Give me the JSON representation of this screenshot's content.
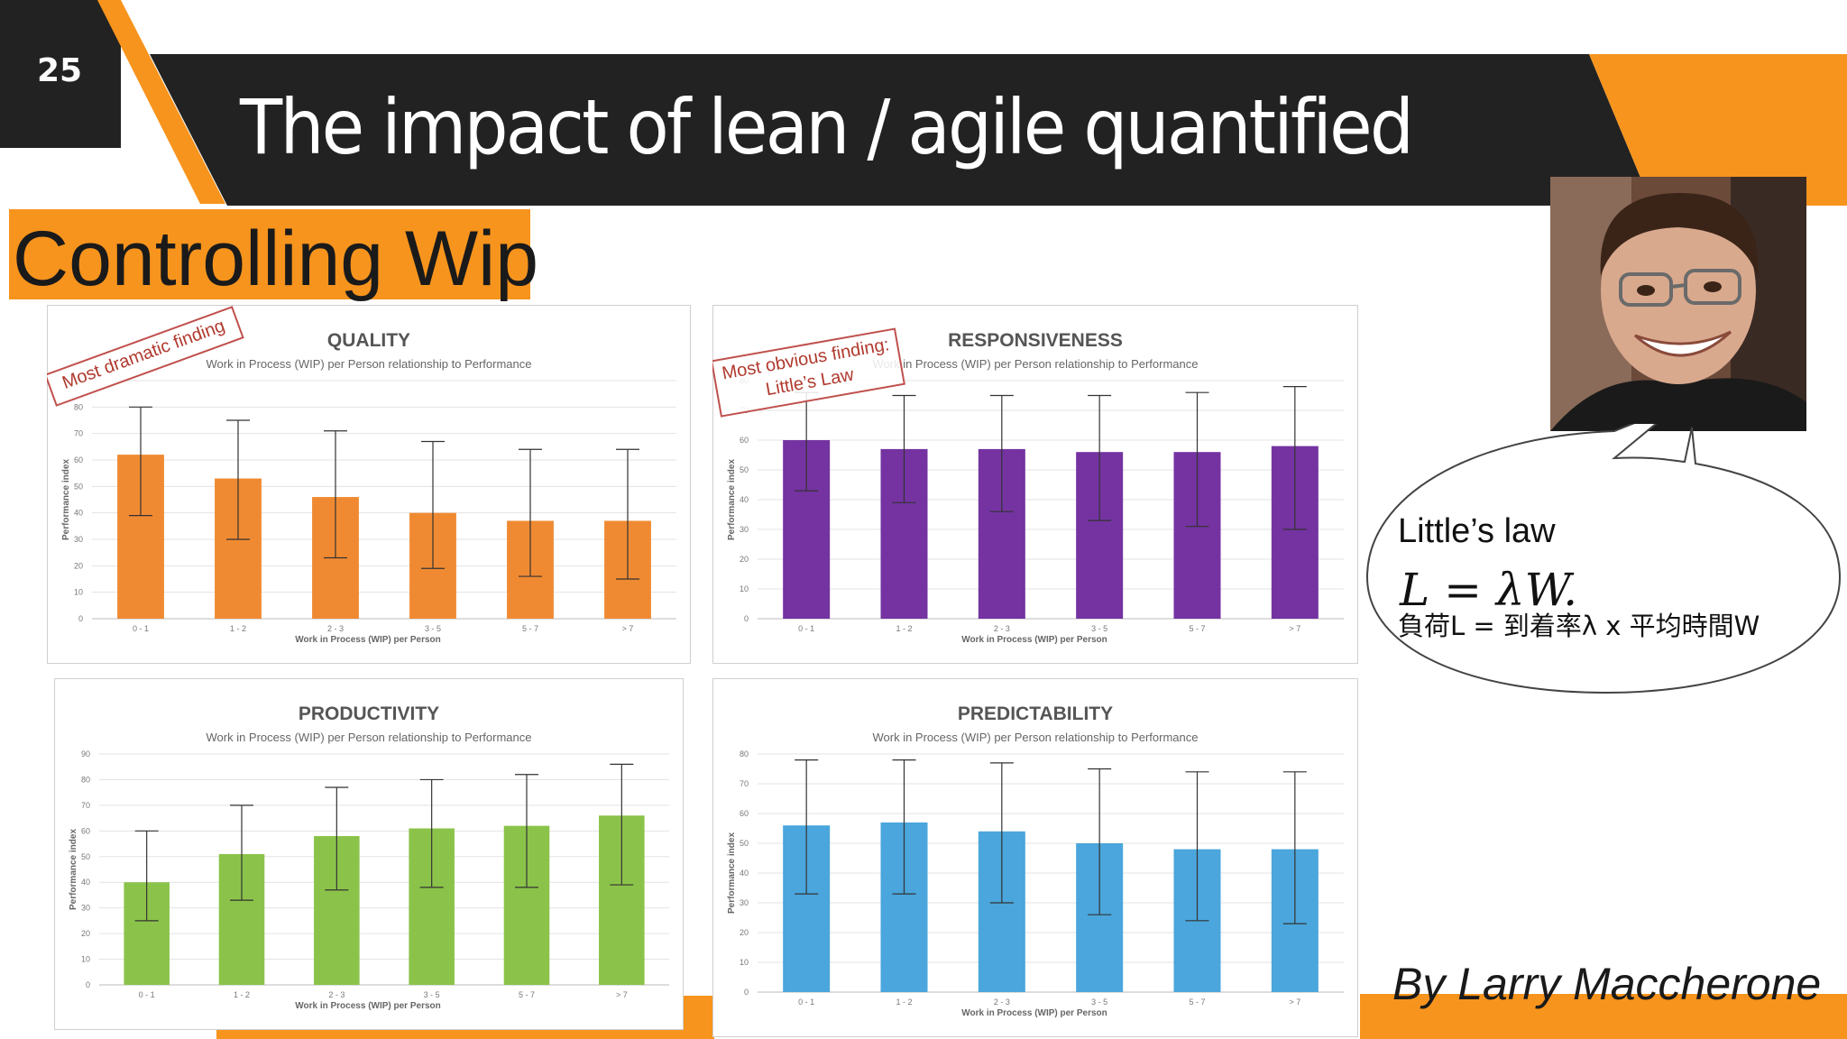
{
  "slide": {
    "number": "25",
    "title": "The impact of lean / agile quantified",
    "banner": "Controlling Wip",
    "author": "By Larry Maccherone"
  },
  "colors": {
    "dark_bar": "#222222",
    "accent_orange": "#f7941d",
    "quality": "#f08a32",
    "responsiveness": "#7433a1",
    "productivity": "#8bc34a",
    "predictability": "#4aa6dc"
  },
  "icons": {
    "photo": "presenter-portrait"
  },
  "bubble": {
    "title": "Little’s law",
    "formula": "L = λW.",
    "japanese": "負荷L = 到着率λ x 平均時間W"
  },
  "chart_data": [
    {
      "type": "bar",
      "title": "QUALITY",
      "subtitle": "Work in Process (WIP) per Person relationship to Performance",
      "xlabel": "Work in Process (WIP) per Person",
      "ylabel": "Performance index",
      "categories": [
        "0 - 1",
        "1 - 2",
        "2 - 3",
        "3 - 5",
        "5 - 7",
        "> 7"
      ],
      "values": [
        62,
        53,
        46,
        40,
        37,
        37
      ],
      "error_low": [
        39,
        30,
        23,
        19,
        16,
        15
      ],
      "error_high": [
        80,
        75,
        71,
        67,
        64,
        64
      ],
      "yticks": [
        0,
        10,
        20,
        30,
        40,
        50,
        60,
        70,
        80,
        90
      ],
      "ylim": [
        0,
        90
      ],
      "grid": true,
      "annotation": [
        "Most dramatic finding"
      ]
    },
    {
      "type": "bar",
      "title": "RESPONSIVENESS",
      "subtitle": "Work in Process (WIP) per Person relationship to Performance",
      "xlabel": "Work in Process (WIP) per Person",
      "ylabel": "Performance index",
      "categories": [
        "0 - 1",
        "1 - 2",
        "2 - 3",
        "3 - 5",
        "5 - 7",
        "> 7"
      ],
      "values": [
        60,
        57,
        57,
        56,
        56,
        58
      ],
      "error_low": [
        43,
        39,
        36,
        33,
        31,
        30
      ],
      "error_high": [
        76,
        75,
        75,
        75,
        76,
        78
      ],
      "yticks": [
        0,
        10,
        20,
        30,
        40,
        50,
        60,
        70,
        80
      ],
      "ylim": [
        0,
        80
      ],
      "grid": true,
      "annotation": [
        "Most obvious finding:",
        "Little’s Law"
      ]
    },
    {
      "type": "bar",
      "title": "PRODUCTIVITY",
      "subtitle": "Work in Process (WIP) per Person relationship to Performance",
      "xlabel": "Work in Process (WIP) per Person",
      "ylabel": "Performance index",
      "categories": [
        "0 - 1",
        "1 - 2",
        "2 - 3",
        "3 - 5",
        "5 - 7",
        "> 7"
      ],
      "values": [
        40,
        51,
        58,
        61,
        62,
        66
      ],
      "error_low": [
        25,
        33,
        37,
        38,
        38,
        39
      ],
      "error_high": [
        60,
        70,
        77,
        80,
        82,
        86
      ],
      "yticks": [
        0,
        10,
        20,
        30,
        40,
        50,
        60,
        70,
        80,
        90
      ],
      "ylim": [
        0,
        90
      ],
      "grid": true,
      "annotation": []
    },
    {
      "type": "bar",
      "title": "PREDICTABILITY",
      "subtitle": "Work in Process (WIP) per Person relationship to Performance",
      "xlabel": "Work in Process (WIP) per Person",
      "ylabel": "Performance index",
      "categories": [
        "0 - 1",
        "1 - 2",
        "2 - 3",
        "3 - 5",
        "5 - 7",
        "> 7"
      ],
      "values": [
        56,
        57,
        54,
        50,
        48,
        48
      ],
      "error_low": [
        33,
        33,
        30,
        26,
        24,
        23
      ],
      "error_high": [
        78,
        78,
        77,
        75,
        74,
        74
      ],
      "yticks": [
        0,
        10,
        20,
        30,
        40,
        50,
        60,
        70,
        80
      ],
      "ylim": [
        0,
        80
      ],
      "grid": true,
      "annotation": []
    }
  ]
}
